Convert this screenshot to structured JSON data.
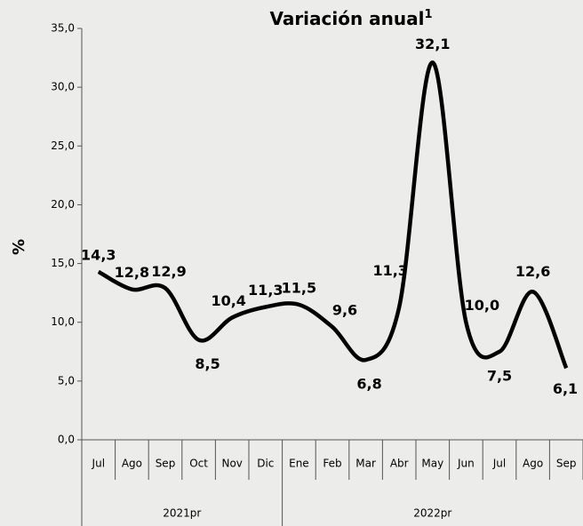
{
  "chart_data": {
    "type": "line",
    "title": "Variación anual",
    "title_note": "1",
    "y_label": "%",
    "categories": [
      "Jul",
      "Ago",
      "Sep",
      "Oct",
      "Nov",
      "Dic",
      "Ene",
      "Feb",
      "Mar",
      "Abr",
      "May",
      "Jun",
      "Jul",
      "Ago",
      "Sep"
    ],
    "groups": [
      {
        "label": "2021pr",
        "span": 6
      },
      {
        "label": "2022pr",
        "span": 9
      }
    ],
    "values": [
      14.3,
      12.8,
      12.9,
      8.5,
      10.4,
      11.3,
      11.5,
      9.6,
      6.8,
      11.3,
      32.1,
      10.0,
      7.5,
      12.6,
      6.1
    ],
    "value_labels": [
      "14,3",
      "12,8",
      "12,9",
      "8,5",
      "10,4",
      "11,3",
      "11,5",
      "9,6",
      "6,8",
      "11,3",
      "32,1",
      "10,0",
      "7,5",
      "12,6",
      "6,1"
    ],
    "color": "#000000",
    "ylim": [
      0,
      35
    ],
    "yticks": [
      {
        "value": 0,
        "label": "0,0"
      },
      {
        "value": 5,
        "label": "5,0"
      },
      {
        "value": 10,
        "label": "10,0"
      },
      {
        "value": 15,
        "label": "15,0"
      },
      {
        "value": 20,
        "label": "20,0"
      },
      {
        "value": 25,
        "label": "25,0"
      },
      {
        "value": 30,
        "label": "30,0"
      },
      {
        "value": 35,
        "label": "35,0"
      }
    ]
  }
}
